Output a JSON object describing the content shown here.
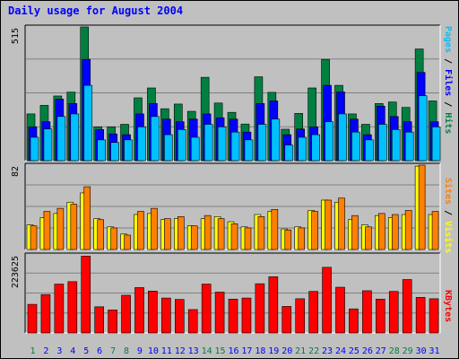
{
  "title": "Daily usage for August 2004",
  "colors": {
    "hits": "#008040",
    "files": "#0000ff",
    "pages": "#00c0ff",
    "visits": "#ffff00",
    "sites": "#ff8000",
    "kbytes": "#ff0000",
    "weekend_day": "#008040",
    "weekday": "#0000ff"
  },
  "legend": {
    "pages": "Pages",
    "files": "Files",
    "hits": "Hits",
    "visits": "Visits",
    "sites": "Sites",
    "kbytes": "KBytes",
    "sep": " / "
  },
  "chart_data": [
    {
      "type": "bar",
      "categories": [
        "1",
        "2",
        "3",
        "4",
        "5",
        "6",
        "7",
        "8",
        "9",
        "10",
        "11",
        "12",
        "13",
        "14",
        "15",
        "16",
        "17",
        "18",
        "19",
        "20",
        "21",
        "22",
        "23",
        "24",
        "25",
        "26",
        "27",
        "28",
        "29",
        "30",
        "31"
      ],
      "weekend": [
        1,
        7,
        8,
        14,
        15,
        21,
        22,
        28,
        29
      ],
      "ymax_label": "515",
      "ylim": [
        0,
        515
      ],
      "series": [
        {
          "name": "Hits",
          "values": [
            180,
            213,
            249,
            264,
            515,
            130,
            130,
            140,
            242,
            280,
            200,
            218,
            190,
            321,
            222,
            186,
            141,
            323,
            263,
            121,
            182,
            280,
            390,
            290,
            180,
            140,
            220,
            226,
            205,
            430,
            230
          ]
        },
        {
          "name": "Files",
          "values": [
            130,
            150,
            237,
            220,
            390,
            120,
            103,
            100,
            180,
            220,
            160,
            150,
            160,
            180,
            165,
            160,
            110,
            220,
            230,
            100,
            122,
            130,
            290,
            265,
            160,
            100,
            210,
            170,
            150,
            340,
            150
          ]
        },
        {
          "name": "Pages",
          "values": [
            90,
            122,
            170,
            180,
            290,
            80,
            70,
            80,
            130,
            170,
            100,
            120,
            90,
            140,
            130,
            110,
            80,
            140,
            160,
            60,
            90,
            100,
            150,
            180,
            110,
            80,
            140,
            120,
            110,
            250,
            130
          ]
        }
      ]
    },
    {
      "type": "bar",
      "categories": [
        "1",
        "2",
        "3",
        "4",
        "5",
        "6",
        "7",
        "8",
        "9",
        "10",
        "11",
        "12",
        "13",
        "14",
        "15",
        "16",
        "17",
        "18",
        "19",
        "20",
        "21",
        "22",
        "23",
        "24",
        "25",
        "26",
        "27",
        "28",
        "29",
        "30",
        "31"
      ],
      "ymax_label": "82",
      "ylim": [
        0,
        82
      ],
      "series": [
        {
          "name": "Visits",
          "values": [
            24,
            31,
            35,
            46,
            55,
            30,
            22,
            15,
            34,
            35,
            29,
            30,
            23,
            30,
            32,
            27,
            22,
            34,
            37,
            20,
            22,
            38,
            48,
            46,
            29,
            24,
            33,
            31,
            34,
            81,
            34
          ]
        },
        {
          "name": "Sites",
          "values": [
            23,
            37,
            40,
            44,
            61,
            29,
            21,
            14,
            37,
            40,
            30,
            32,
            23,
            33,
            30,
            25,
            21,
            32,
            39,
            19,
            21,
            37,
            48,
            50,
            33,
            22,
            35,
            34,
            38,
            82,
            37
          ]
        }
      ]
    },
    {
      "type": "bar",
      "categories": [
        "1",
        "2",
        "3",
        "4",
        "5",
        "6",
        "7",
        "8",
        "9",
        "10",
        "11",
        "12",
        "13",
        "14",
        "15",
        "16",
        "17",
        "18",
        "19",
        "20",
        "21",
        "22",
        "23",
        "24",
        "25",
        "26",
        "27",
        "28",
        "29",
        "30",
        "31"
      ],
      "ymax_label": "223625",
      "ylim": [
        0,
        223625
      ],
      "series": [
        {
          "name": "KBytes",
          "values": [
            82000,
            110000,
            140000,
            147000,
            220000,
            75000,
            66000,
            108000,
            130000,
            120000,
            100000,
            96000,
            67000,
            140000,
            117000,
            97000,
            100000,
            141000,
            161000,
            76000,
            98000,
            119000,
            188000,
            131000,
            69000,
            121000,
            97000,
            119000,
            153000,
            102000,
            98000
          ]
        }
      ]
    }
  ]
}
